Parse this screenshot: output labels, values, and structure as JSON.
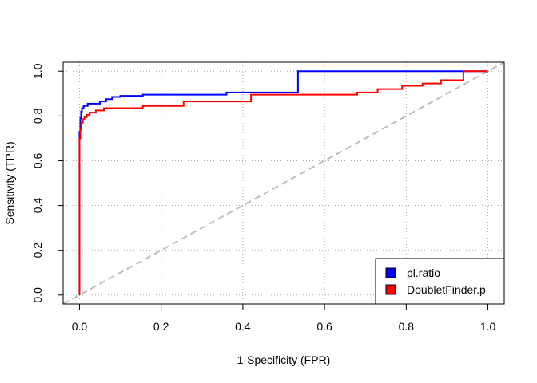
{
  "chart_data": {
    "type": "line",
    "title": "",
    "xlabel": "1-Specificity (FPR)",
    "ylabel": "Sensitivity (TPR)",
    "xlim": [
      -0.04,
      1.04
    ],
    "ylim": [
      -0.04,
      1.04
    ],
    "xticks": [
      0.0,
      0.2,
      0.4,
      0.6,
      0.8,
      1.0
    ],
    "yticks": [
      0.0,
      0.2,
      0.4,
      0.6,
      0.8,
      1.0
    ],
    "xtick_labels": [
      "0.0",
      "0.2",
      "0.4",
      "0.6",
      "0.8",
      "1.0"
    ],
    "ytick_labels": [
      "0.0",
      "0.2",
      "0.4",
      "0.6",
      "0.8",
      "1.0"
    ],
    "grid": true,
    "legend_position": "bottom-right",
    "diagonal_reference": {
      "x": [
        -0.04,
        1.04
      ],
      "y": [
        -0.04,
        1.04
      ],
      "color": "#bebebe",
      "style": "dashed"
    },
    "series": [
      {
        "name": "pl.ratio",
        "color": "#0000ff",
        "x": [
          0.0,
          0.0,
          0.002,
          0.002,
          0.004,
          0.004,
          0.006,
          0.006,
          0.01,
          0.01,
          0.02,
          0.02,
          0.05,
          0.05,
          0.065,
          0.065,
          0.08,
          0.08,
          0.1,
          0.1,
          0.155,
          0.155,
          0.36,
          0.36,
          0.535,
          0.535,
          1.0
        ],
        "y": [
          0.0,
          0.73,
          0.73,
          0.79,
          0.79,
          0.82,
          0.82,
          0.835,
          0.835,
          0.845,
          0.845,
          0.855,
          0.855,
          0.865,
          0.865,
          0.875,
          0.875,
          0.885,
          0.885,
          0.89,
          0.89,
          0.895,
          0.895,
          0.905,
          0.905,
          1.0,
          1.0
        ]
      },
      {
        "name": "DoubletFinder.p",
        "color": "#ff0000",
        "x": [
          0.0,
          0.0,
          0.002,
          0.002,
          0.004,
          0.004,
          0.008,
          0.008,
          0.012,
          0.012,
          0.018,
          0.018,
          0.025,
          0.025,
          0.04,
          0.04,
          0.06,
          0.06,
          0.155,
          0.155,
          0.255,
          0.255,
          0.42,
          0.42,
          0.68,
          0.68,
          0.73,
          0.73,
          0.79,
          0.79,
          0.84,
          0.84,
          0.885,
          0.885,
          0.94,
          0.94,
          1.0
        ],
        "y": [
          0.0,
          0.7,
          0.7,
          0.74,
          0.74,
          0.77,
          0.77,
          0.785,
          0.785,
          0.795,
          0.795,
          0.805,
          0.805,
          0.815,
          0.815,
          0.825,
          0.825,
          0.835,
          0.835,
          0.845,
          0.845,
          0.865,
          0.865,
          0.895,
          0.895,
          0.905,
          0.905,
          0.92,
          0.92,
          0.935,
          0.935,
          0.945,
          0.945,
          0.96,
          0.96,
          1.0,
          1.0
        ]
      }
    ]
  }
}
